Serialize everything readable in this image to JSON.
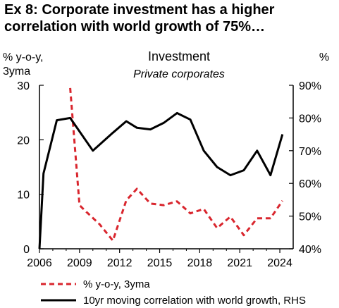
{
  "title_line1": "Ex 8: Corporate investment has a higher",
  "title_line2": "correlation with world growth of 75%…",
  "chart_data": {
    "type": "line",
    "title": "Investment",
    "subtitle": "Private corporates",
    "ylabel_left": [
      "% y-o-y,",
      "3yma"
    ],
    "ylabel_right": "%",
    "xlim": [
      2006,
      2025
    ],
    "x_ticks": [
      "2006",
      "2009",
      "2012",
      "2015",
      "2018",
      "2021",
      "2024"
    ],
    "left_axis": {
      "ylim": [
        0,
        30
      ],
      "ticks": [
        "0",
        "10",
        "20",
        "30"
      ]
    },
    "right_axis": {
      "ylim": [
        40,
        90
      ],
      "ticks": [
        "40%",
        "50%",
        "60%",
        "70%",
        "80%",
        "90%"
      ]
    },
    "grid": false,
    "legend_position": "bottom",
    "series": [
      {
        "name": "% y-o-y, 3yma",
        "axis": "left",
        "color": "#d9262e",
        "style": "dashed",
        "x": [
          2008.3,
          2009.0,
          2009.5,
          2010.5,
          2011.5,
          2012.5,
          2013.3,
          2014.3,
          2015.3,
          2016.3,
          2017.3,
          2018.3,
          2019.3,
          2020.3,
          2021.3,
          2022.3,
          2023.3,
          2024.2
        ],
        "y": [
          29.5,
          8.0,
          6.8,
          4.5,
          1.5,
          8.9,
          11.0,
          8.3,
          8.0,
          8.7,
          6.5,
          7.3,
          3.8,
          5.9,
          2.5,
          5.6,
          5.6,
          8.8
        ]
      },
      {
        "name": "10yr moving correlation with world growth, RHS",
        "axis": "right",
        "color": "#000000",
        "style": "solid",
        "x": [
          2006.0,
          2006.3,
          2007.3,
          2008.3,
          2010.0,
          2011.5,
          2012.5,
          2013.3,
          2014.3,
          2015.3,
          2016.3,
          2017.3,
          2018.3,
          2019.3,
          2020.3,
          2021.3,
          2022.3,
          2023.3,
          2024.2
        ],
        "y": [
          40.0,
          63.0,
          79.3,
          80.0,
          70.0,
          75.5,
          79.0,
          77.0,
          76.5,
          78.5,
          81.5,
          79.5,
          70.0,
          65.0,
          62.5,
          64.0,
          70.0,
          62.5,
          75.0
        ]
      }
    ]
  }
}
